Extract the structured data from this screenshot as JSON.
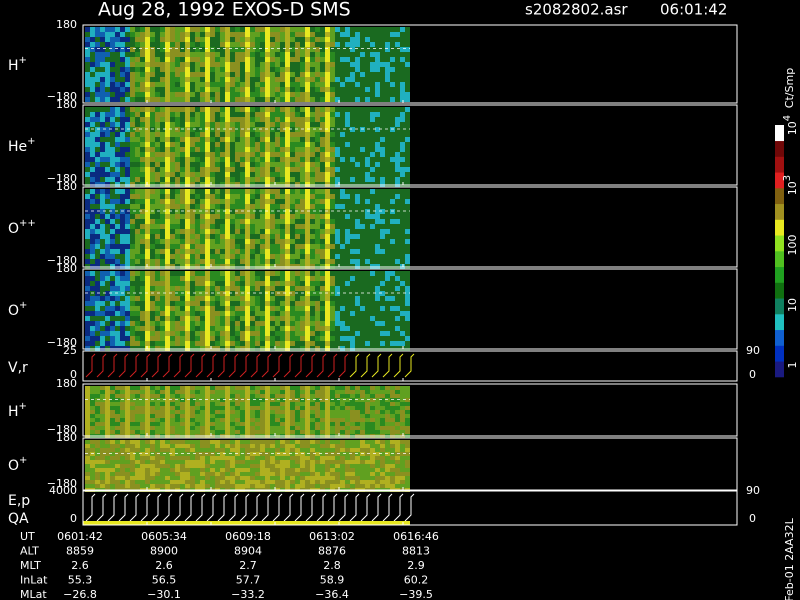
{
  "header": {
    "title": "Aug 28, 1992   EXOS-D SMS",
    "file": "s2082802.asr",
    "time": "06:01:42"
  },
  "panels": [
    {
      "label": {
        "base": "H",
        "sup": "+"
      },
      "ticks": [
        "180",
        "−180"
      ]
    },
    {
      "label": {
        "base": "He",
        "sup": "+"
      },
      "ticks": [
        "180",
        "−180"
      ]
    },
    {
      "label": {
        "base": "O",
        "sup": "++"
      },
      "ticks": [
        "180",
        "−180"
      ]
    },
    {
      "label": {
        "base": "O",
        "sup": "+"
      },
      "ticks": [
        "180",
        "−180"
      ]
    },
    {
      "label": {
        "base": "V,r",
        "sup": ""
      },
      "ticks": [
        "25",
        "0"
      ],
      "right_ticks": [
        "90",
        "0"
      ]
    },
    {
      "label": {
        "base": "H",
        "sup": "+"
      },
      "ticks": [
        "180",
        "−180"
      ]
    },
    {
      "label": {
        "base": "O",
        "sup": "+"
      },
      "ticks": [
        "180",
        "−180"
      ]
    },
    {
      "label": {
        "base": "E,p",
        "sup": ""
      },
      "label2": "QA",
      "ticks": [
        "4000",
        "0"
      ],
      "right_ticks": [
        "90",
        "0"
      ]
    }
  ],
  "colorbar": {
    "unit": "Ct/Smp",
    "labels": [
      {
        "base": "1",
        "sup": ""
      },
      {
        "base": "10",
        "sup": ""
      },
      {
        "base": "100",
        "sup": ""
      },
      {
        "base": "10",
        "sup": "3"
      },
      {
        "base": "10",
        "sup": "4"
      }
    ]
  },
  "ephemeris": {
    "rows": [
      {
        "name": "UT",
        "values": [
          "0601:42",
          "0605:34",
          "0609:18",
          "0613:02",
          "0616:46"
        ]
      },
      {
        "name": "ALT",
        "values": [
          "8859",
          "8900",
          "8904",
          "8876",
          "8813"
        ]
      },
      {
        "name": "MLT",
        "values": [
          "2.6",
          "2.6",
          "2.7",
          "2.8",
          "2.9"
        ]
      },
      {
        "name": "InLat",
        "values": [
          "55.3",
          "56.5",
          "57.7",
          "58.9",
          "60.2"
        ]
      },
      {
        "name": "MLat",
        "values": [
          "−26.8",
          "−30.1",
          "−33.2",
          "−36.4",
          "−39.5"
        ]
      }
    ]
  },
  "footer": "Feb-01 2AA32L"
}
